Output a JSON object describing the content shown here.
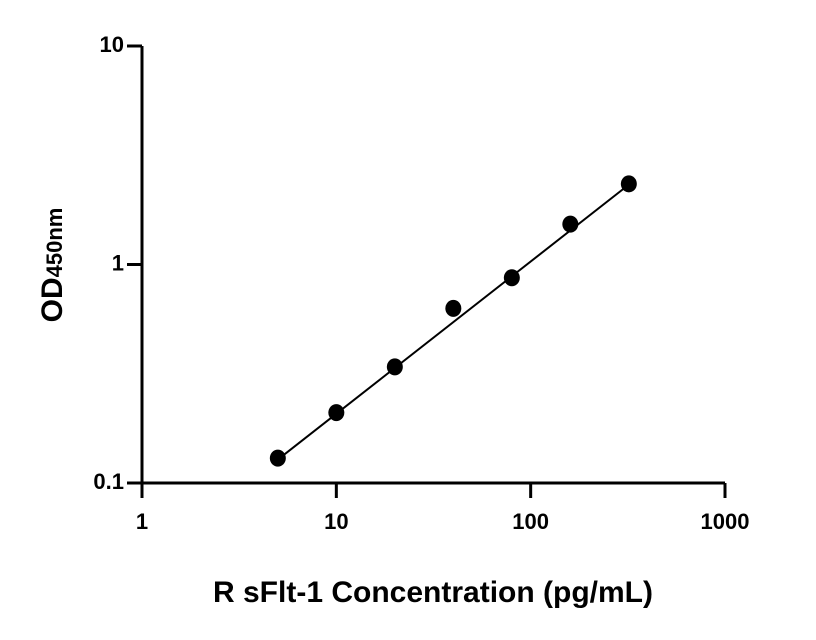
{
  "chart_data": {
    "type": "scatter",
    "log_x": true,
    "log_y": true,
    "x_label": "R sFlt-1 Concentration (pg/mL)",
    "y_label": {
      "text": "OD",
      "subscript": "450nm"
    },
    "x": [
      5,
      10,
      20,
      40,
      80,
      160,
      320
    ],
    "values": [
      0.13,
      0.21,
      0.34,
      0.63,
      0.87,
      1.53,
      2.34
    ],
    "color": "#000000",
    "fit": {
      "x": [
        5,
        320
      ],
      "values": [
        0.128,
        2.32
      ]
    },
    "xlim": [
      1,
      1000
    ],
    "xticks": [
      1,
      10,
      100,
      1000
    ],
    "ylim": [
      0.1,
      10
    ],
    "yticks": [
      0.1,
      1,
      10
    ]
  }
}
